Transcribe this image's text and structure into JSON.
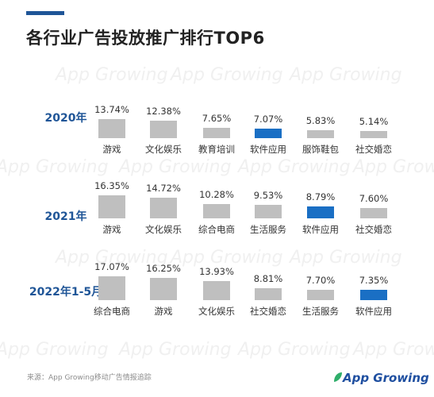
{
  "title": "各行业广告投放推广排行TOP6",
  "watermark_text": "App Growing",
  "source": "来源：App Growing移动广告情报追踪",
  "logo_text": "App Growing",
  "colors": {
    "accent": "#1f5597",
    "bar_default": "#bfbfbf",
    "bar_highlight": "#1a6fc4",
    "year_label": "#1f5597"
  },
  "chart_data": [
    {
      "type": "bar",
      "group_label": "2020年",
      "categories": [
        "游戏",
        "文化娱乐",
        "教育培训",
        "软件应用",
        "服饰鞋包",
        "社交婚恋"
      ],
      "values": [
        13.74,
        12.38,
        7.65,
        7.07,
        5.83,
        5.14
      ],
      "value_labels": [
        "13.74%",
        "12.38%",
        "7.65%",
        "7.07%",
        "5.83%",
        "5.14%"
      ],
      "highlight": "软件应用"
    },
    {
      "type": "bar",
      "group_label": "2021年",
      "categories": [
        "游戏",
        "文化娱乐",
        "综合电商",
        "生活服务",
        "软件应用",
        "社交婚恋"
      ],
      "values": [
        16.35,
        14.72,
        10.28,
        9.53,
        8.79,
        7.6
      ],
      "value_labels": [
        "16.35%",
        "14.72%",
        "10.28%",
        "9.53%",
        "8.79%",
        "7.60%"
      ],
      "highlight": "软件应用"
    },
    {
      "type": "bar",
      "group_label": "2022年1-5月",
      "categories": [
        "综合电商",
        "游戏",
        "文化娱乐",
        "社交婚恋",
        "生活服务",
        "软件应用"
      ],
      "values": [
        17.07,
        16.25,
        13.93,
        8.81,
        7.7,
        7.35
      ],
      "value_labels": [
        "17.07%",
        "16.25%",
        "13.93%",
        "8.81%",
        "7.70%",
        "7.35%"
      ],
      "highlight": "软件应用"
    }
  ]
}
